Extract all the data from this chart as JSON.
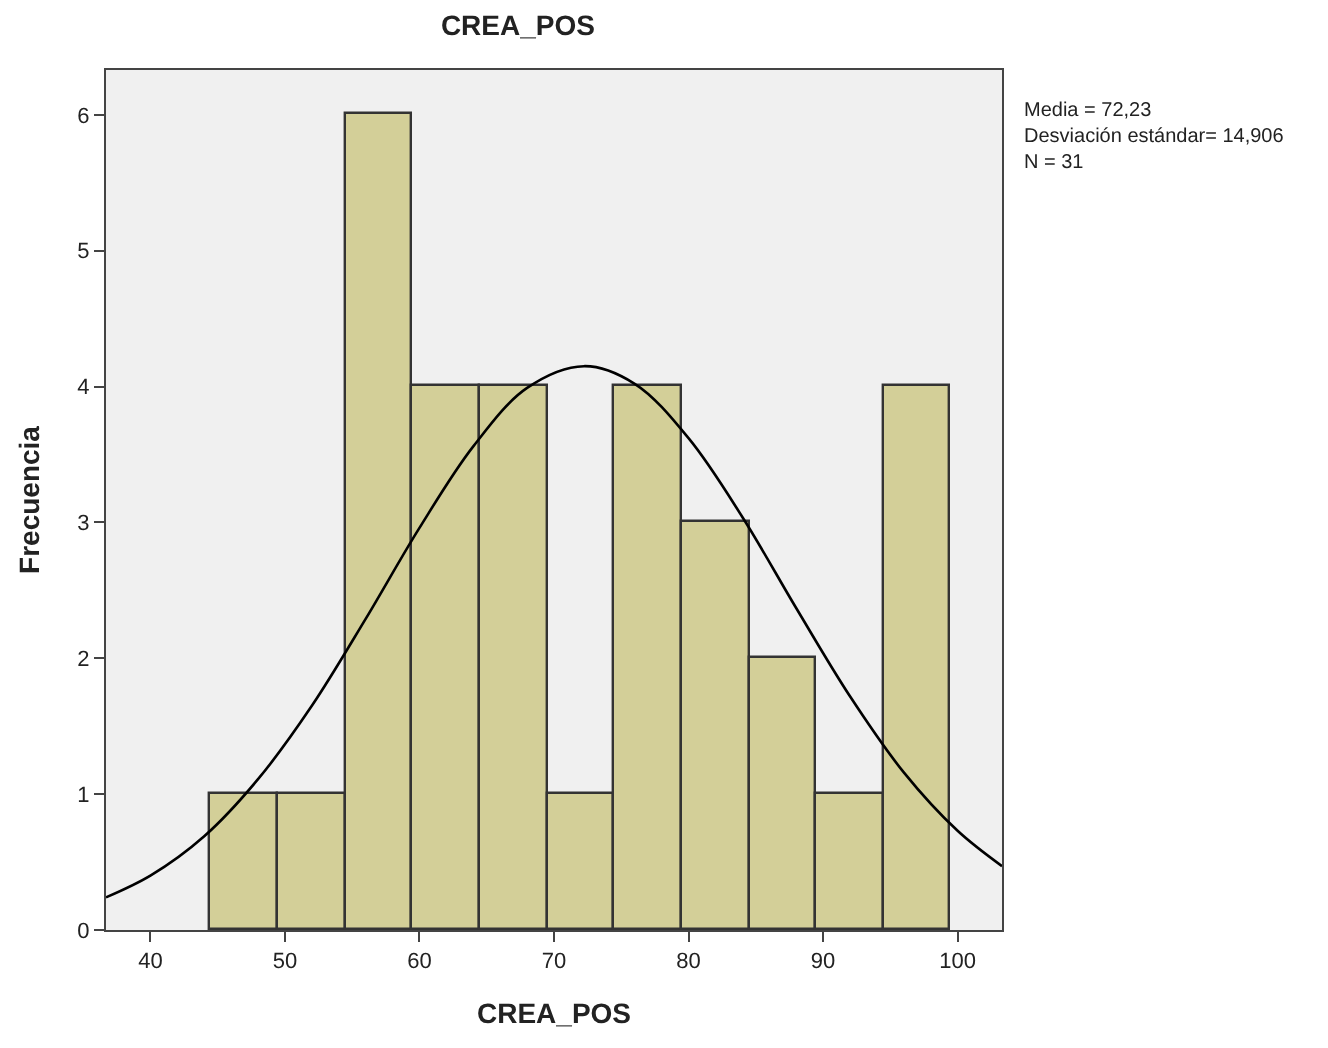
{
  "chart_data": {
    "type": "histogram",
    "title": "CREA_POS",
    "xlabel": "CREA_POS",
    "ylabel": "Frecuencia",
    "bins": [
      44.5,
      49.5,
      54.5,
      59.5,
      64.5,
      69.5,
      74.5,
      79.5,
      84.5,
      89.5,
      94.5,
      99.5
    ],
    "series": [
      {
        "color": "#d3cf98",
        "values": [
          1,
          1,
          6,
          4,
          4,
          1,
          4,
          3,
          2,
          1,
          4
        ]
      },
      {
        "type": "line",
        "color": "#000000",
        "x": [
          36.7,
          40,
          44,
          48,
          52,
          56,
          60,
          64,
          68,
          72.23,
          76,
          80,
          84,
          88,
          92,
          96,
          100,
          103.3
        ],
        "values": [
          0.24,
          0.4,
          0.69,
          1.11,
          1.65,
          2.29,
          2.96,
          3.56,
          3.99,
          4.15,
          4.02,
          3.62,
          3.04,
          2.37,
          1.72,
          1.16,
          0.73,
          0.47
        ]
      }
    ],
    "xlim": [
      36.7,
      103.3
    ],
    "ylim": [
      0,
      6.33
    ],
    "xticks": [
      40,
      50,
      60,
      70,
      80,
      90,
      100
    ],
    "yticks": [
      0,
      1,
      2,
      3,
      4,
      5,
      6
    ],
    "grid": false,
    "annotations": [
      "Media = 72,23",
      "Desviación estándar= 14,906",
      "N = 31"
    ]
  }
}
